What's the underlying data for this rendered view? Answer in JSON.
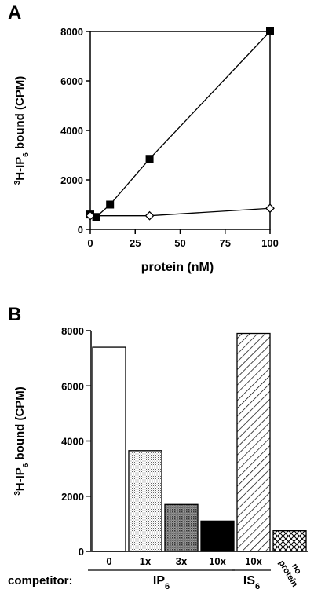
{
  "chart_data": [
    {
      "panel": "A",
      "type": "line",
      "xlabel": "protein (nM)",
      "ylabel": {
        "sup": "3",
        "pre": "H-IP",
        "sub": "6",
        "post": " bound (CPM)"
      },
      "xlim": [
        0,
        100
      ],
      "ylim": [
        0,
        8000
      ],
      "xticks": [
        0,
        25,
        50,
        75,
        100
      ],
      "yticks": [
        0,
        2000,
        4000,
        6000,
        8000
      ],
      "grid": false,
      "series": [
        {
          "marker": "filled-square",
          "x": [
            0,
            3.3,
            11,
            33,
            100
          ],
          "y": [
            600,
            500,
            1000,
            2850,
            8000
          ]
        },
        {
          "marker": "open-diamond",
          "x": [
            0,
            33,
            100
          ],
          "y": [
            550,
            550,
            850
          ]
        }
      ]
    },
    {
      "panel": "B",
      "type": "bar",
      "ylabel": {
        "sup": "3",
        "pre": "H-IP",
        "sub": "6",
        "post": " bound (CPM)"
      },
      "ylim": [
        0,
        8000
      ],
      "yticks": [
        0,
        2000,
        4000,
        6000,
        8000
      ],
      "grid": false,
      "categories": [
        "0",
        "1x",
        "3x",
        "10x",
        "10x",
        "no protein"
      ],
      "values": [
        7400,
        3650,
        1700,
        1100,
        7900,
        750
      ],
      "fills": [
        "white",
        "light-stipple",
        "dark-stipple",
        "black",
        "diagonal-hatch",
        "crosshatch"
      ],
      "x_axis_title": "competitor:",
      "groups": [
        {
          "label": "IP",
          "sub": "6",
          "members": [
            0,
            1,
            2,
            3
          ]
        },
        {
          "label": "IS",
          "sub": "6",
          "members": [
            4
          ]
        }
      ]
    }
  ]
}
